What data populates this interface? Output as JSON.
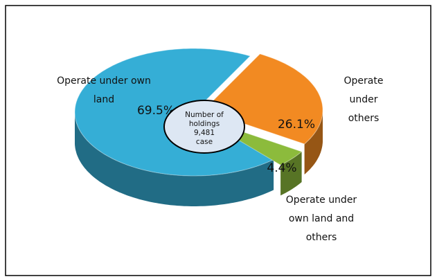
{
  "chart_data": {
    "type": "pie",
    "categories": [
      "Operate under own land",
      "Operate under others",
      "Operate under own land and others"
    ],
    "values": [
      69.5,
      26.1,
      4.4
    ],
    "value_labels": [
      "69.5%",
      "26.1%",
      "4.4%"
    ],
    "colors": [
      "#35aed6",
      "#f28a22",
      "#8cbb3c"
    ],
    "annotation": [
      "Number of",
      "holdings",
      "9,481",
      "case"
    ]
  }
}
